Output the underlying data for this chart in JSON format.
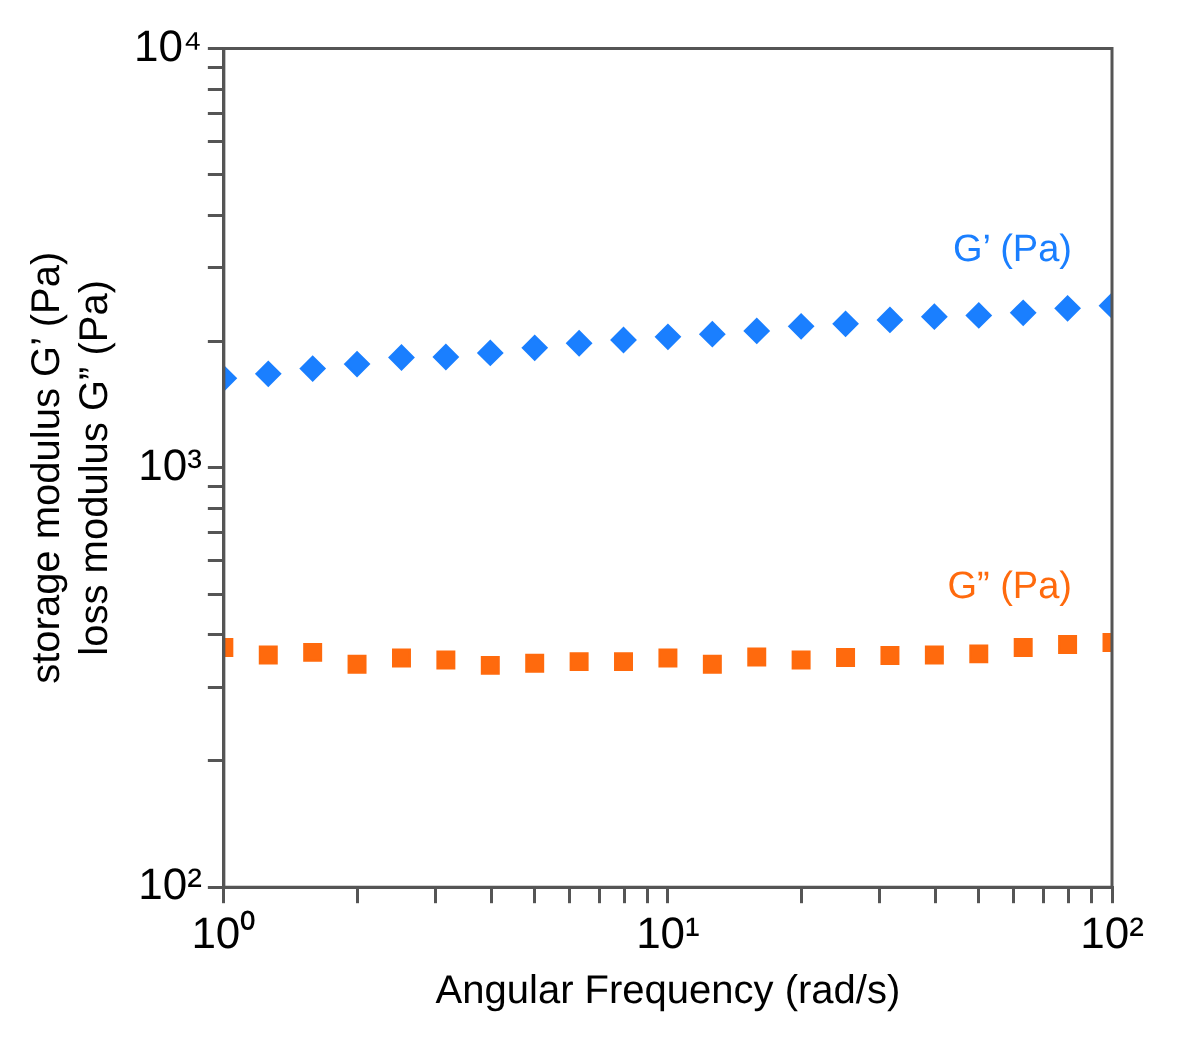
{
  "chart_data": {
    "type": "scatter",
    "xlabel": "Angular Frequency (rad/s)",
    "ylabel": "storage modulus G’ (Pa)\nloss modulus G” (Pa)",
    "log": "xy",
    "grid": false,
    "legend": false,
    "x": [
      1,
      1.259,
      1.585,
      1.995,
      2.512,
      3.162,
      3.981,
      5.012,
      6.31,
      7.943,
      10,
      12.59,
      15.85,
      19.95,
      25.12,
      31.62,
      39.81,
      50.12,
      63.1,
      79.43,
      100
    ],
    "xlim": [
      1,
      100
    ],
    "ylim": [
      100,
      10000
    ],
    "xticks": [
      {
        "value": 1,
        "label": "10⁰"
      },
      {
        "value": 2,
        "label": null
      },
      {
        "value": 3,
        "label": null
      },
      {
        "value": 4,
        "label": null
      },
      {
        "value": 5,
        "label": null
      },
      {
        "value": 6,
        "label": null
      },
      {
        "value": 7,
        "label": null
      },
      {
        "value": 8,
        "label": null
      },
      {
        "value": 9,
        "label": null
      },
      {
        "value": 10,
        "label": "10¹"
      },
      {
        "value": 20,
        "label": null
      },
      {
        "value": 30,
        "label": null
      },
      {
        "value": 40,
        "label": null
      },
      {
        "value": 50,
        "label": null
      },
      {
        "value": 60,
        "label": null
      },
      {
        "value": 70,
        "label": null
      },
      {
        "value": 80,
        "label": null
      },
      {
        "value": 90,
        "label": null
      },
      {
        "value": 100,
        "label": "10²"
      }
    ],
    "yticks": [
      {
        "value": 100,
        "label": "10²"
      },
      {
        "value": 200,
        "label": null
      },
      {
        "value": 300,
        "label": null
      },
      {
        "value": 400,
        "label": null
      },
      {
        "value": 500,
        "label": null
      },
      {
        "value": 600,
        "label": null
      },
      {
        "value": 700,
        "label": null
      },
      {
        "value": 800,
        "label": null
      },
      {
        "value": 900,
        "label": null
      },
      {
        "value": 1000,
        "label": "10³"
      },
      {
        "value": 2000,
        "label": null
      },
      {
        "value": 3000,
        "label": null
      },
      {
        "value": 4000,
        "label": null
      },
      {
        "value": 5000,
        "label": null
      },
      {
        "value": 6000,
        "label": null
      },
      {
        "value": 7000,
        "label": null
      },
      {
        "value": 8000,
        "label": null
      },
      {
        "value": 9000,
        "label": null
      },
      {
        "value": 10000,
        "label": "10⁴"
      }
    ],
    "series": [
      {
        "name": "G’ (Pa)",
        "color": "#1a7fff",
        "marker": "diamond",
        "values": [
          1634,
          1675,
          1724,
          1767,
          1832,
          1837,
          1879,
          1932,
          1981,
          2017,
          2052,
          2083,
          2120,
          2174,
          2204,
          2252,
          2293,
          2308,
          2342,
          2400,
          2436
        ]
      },
      {
        "name": "G” (Pa)",
        "color": "#ff6a0d",
        "marker": "square",
        "values": [
          373,
          358,
          363,
          340,
          352,
          348,
          338,
          342,
          345,
          345,
          352,
          340,
          354,
          348,
          353,
          357,
          358,
          360,
          373,
          379,
          383
        ]
      }
    ]
  }
}
